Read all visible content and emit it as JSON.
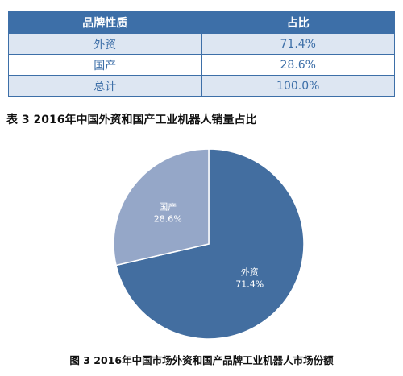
{
  "table": {
    "headers": [
      "品牌性质",
      "占比"
    ],
    "rows": [
      [
        "外资",
        "71.4%"
      ],
      [
        "国产",
        "28.6%"
      ],
      [
        "总计",
        "100.0%"
      ]
    ]
  },
  "table_caption": "表 3  2016年中国外资和国产工业机器人销量占比",
  "figure_caption": "图 3 2016年中国市场外资和国产品牌工业机器人市场份额",
  "colors": {
    "header_bg": "#3d6fa8",
    "foreign_slice": "#436ea0",
    "domestic_slice": "#95a7c8"
  },
  "chart_data": {
    "type": "pie",
    "title": "",
    "slices": [
      {
        "label": "外资",
        "value": 71.4,
        "value_label": "71.4%",
        "color": "#436ea0"
      },
      {
        "label": "国产",
        "value": 28.6,
        "value_label": "28.6%",
        "color": "#95a7c8"
      }
    ],
    "start_angle_deg": 0,
    "direction": "clockwise",
    "legend": "none"
  }
}
